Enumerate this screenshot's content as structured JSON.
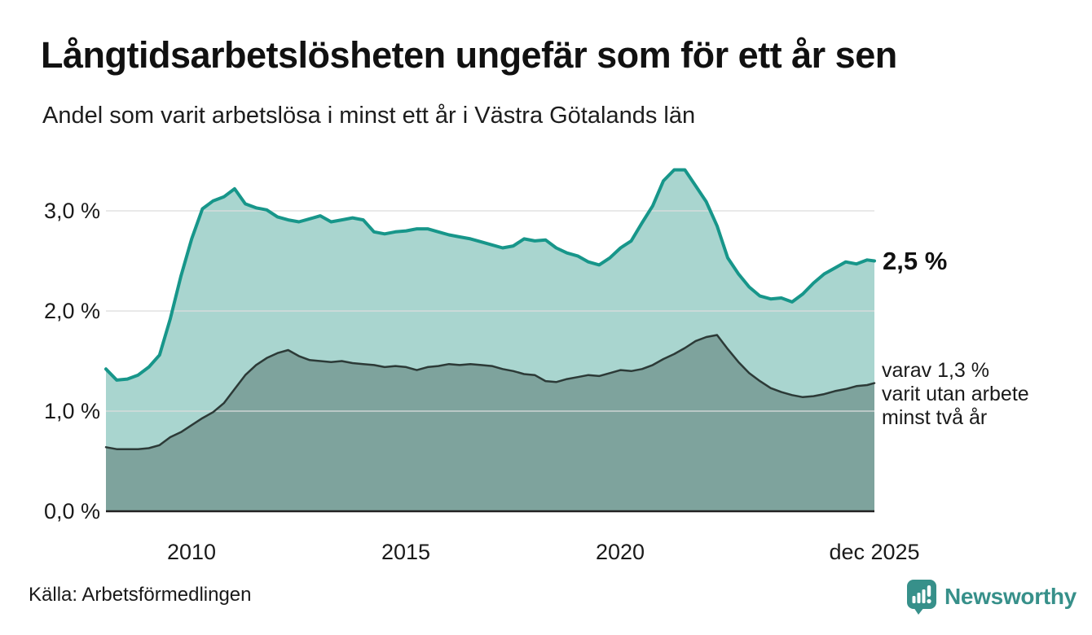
{
  "header": {
    "title": "Långtidsarbetslösheten ungefär som för ett år sen",
    "subtitle": "Andel som varit arbetslösa i minst ett år i Västra Götalands län"
  },
  "chart_data": {
    "type": "area",
    "title": "Långtidsarbetslösheten ungefär som för ett år sen",
    "subtitle": "Andel som varit arbetslösa i minst ett år i Västra Götalands län",
    "unit": "%",
    "ylim": [
      0,
      3.5
    ],
    "grid": "horizontal",
    "x": [
      2008,
      2008.25,
      2008.5,
      2008.75,
      2009,
      2009.25,
      2009.5,
      2009.75,
      2010,
      2010.25,
      2010.5,
      2010.75,
      2011,
      2011.25,
      2011.5,
      2011.75,
      2012,
      2012.25,
      2012.5,
      2012.75,
      2013,
      2013.25,
      2013.5,
      2013.75,
      2014,
      2014.25,
      2014.5,
      2014.75,
      2015,
      2015.25,
      2015.5,
      2015.75,
      2016,
      2016.25,
      2016.5,
      2016.75,
      2017,
      2017.25,
      2017.5,
      2017.75,
      2018,
      2018.25,
      2018.5,
      2018.75,
      2019,
      2019.25,
      2019.5,
      2019.75,
      2020,
      2020.25,
      2020.5,
      2020.75,
      2021,
      2021.25,
      2021.5,
      2021.75,
      2022,
      2022.25,
      2022.5,
      2022.75,
      2023,
      2023.25,
      2023.5,
      2023.75,
      2024,
      2024.25,
      2024.5,
      2024.75,
      2025,
      2025.25,
      2025.5,
      2025.75,
      2025.92
    ],
    "series": [
      {
        "name": "Andel arbetslösa minst ett år",
        "line_color": "#17968a",
        "fill_color": "#a9d5cf",
        "line_width": 4,
        "values": [
          1.42,
          1.31,
          1.32,
          1.36,
          1.44,
          1.56,
          1.92,
          2.35,
          2.72,
          3.02,
          3.1,
          3.14,
          3.22,
          3.07,
          3.03,
          3.01,
          2.94,
          2.91,
          2.89,
          2.92,
          2.95,
          2.89,
          2.91,
          2.93,
          2.91,
          2.79,
          2.77,
          2.79,
          2.8,
          2.82,
          2.82,
          2.79,
          2.76,
          2.74,
          2.72,
          2.69,
          2.66,
          2.63,
          2.65,
          2.72,
          2.7,
          2.71,
          2.63,
          2.58,
          2.55,
          2.49,
          2.46,
          2.53,
          2.63,
          2.7,
          2.88,
          3.05,
          3.3,
          3.41,
          3.41,
          3.25,
          3.09,
          2.85,
          2.53,
          2.37,
          2.24,
          2.15,
          2.12,
          2.13,
          2.09,
          2.17,
          2.28,
          2.37,
          2.43,
          2.49,
          2.47,
          2.51,
          2.5
        ]
      },
      {
        "name": "varav utan arbete minst två år",
        "line_color": "#2c3a37",
        "fill_color": "#7ea39d",
        "line_width": 2.5,
        "values": [
          0.64,
          0.62,
          0.62,
          0.62,
          0.63,
          0.66,
          0.74,
          0.79,
          0.86,
          0.93,
          0.99,
          1.08,
          1.22,
          1.36,
          1.46,
          1.53,
          1.58,
          1.61,
          1.55,
          1.51,
          1.5,
          1.49,
          1.5,
          1.48,
          1.47,
          1.46,
          1.44,
          1.45,
          1.44,
          1.41,
          1.44,
          1.45,
          1.47,
          1.46,
          1.47,
          1.46,
          1.45,
          1.42,
          1.4,
          1.37,
          1.36,
          1.3,
          1.29,
          1.32,
          1.34,
          1.36,
          1.35,
          1.38,
          1.41,
          1.4,
          1.42,
          1.46,
          1.52,
          1.57,
          1.63,
          1.7,
          1.74,
          1.76,
          1.62,
          1.49,
          1.38,
          1.3,
          1.23,
          1.19,
          1.16,
          1.14,
          1.15,
          1.17,
          1.2,
          1.22,
          1.25,
          1.26,
          1.28
        ]
      }
    ],
    "y_ticks": [
      {
        "label": "3,0 %",
        "value": 3
      },
      {
        "label": "2,0 %",
        "value": 2
      },
      {
        "label": "1,0 %",
        "value": 1
      },
      {
        "label": "0,0 %",
        "value": 0
      }
    ],
    "x_ticks": [
      {
        "label": "2010",
        "t": 2010
      },
      {
        "label": "2015",
        "t": 2015
      },
      {
        "label": "2020",
        "t": 2020
      },
      {
        "label": "dec 2025",
        "t": 2025.92
      }
    ],
    "grid_color": "#dedede",
    "axis_color": "#222222"
  },
  "annotations": {
    "latest": "2,5 %",
    "two_year": "varav 1,3 %\nvarit utan arbete\nminst två år"
  },
  "footer": {
    "source": "Källa: Arbetsförmedlingen",
    "brand": "Newsworthy",
    "brand_color": "#37908a"
  }
}
